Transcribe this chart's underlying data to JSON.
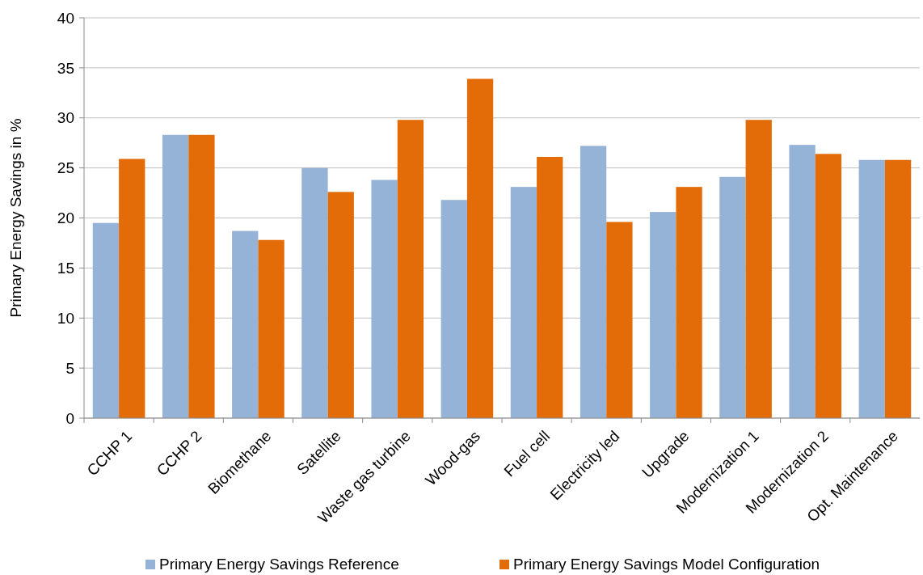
{
  "chart_data": {
    "type": "bar",
    "ylabel": "Primary Energy Savings in %",
    "categories": [
      "CCHP 1",
      "CCHP 2",
      "Biomethane",
      "Satellite",
      "Waste gas turbine",
      "Wood-gas",
      "Fuel cell",
      "Electricity led",
      "Upgrade",
      "Modernization 1",
      "Modernization 2",
      "Opt. Maintenance"
    ],
    "series": [
      {
        "name": "Primary Energy Savings Reference",
        "color": "#95b3d7",
        "values": [
          19.5,
          28.3,
          18.7,
          25.0,
          23.8,
          21.8,
          23.1,
          27.2,
          20.6,
          24.1,
          27.3,
          25.8
        ]
      },
      {
        "name": "Primary Energy Savings Model Configuration",
        "color": "#e36c09",
        "values": [
          25.9,
          28.3,
          17.8,
          22.6,
          29.8,
          33.9,
          26.1,
          19.6,
          23.1,
          29.8,
          26.4,
          25.8
        ]
      }
    ],
    "ylim": [
      0,
      40
    ],
    "yticks": [
      0,
      5,
      10,
      15,
      20,
      25,
      30,
      35,
      40
    ],
    "grid": "y",
    "legend": "bottom"
  }
}
